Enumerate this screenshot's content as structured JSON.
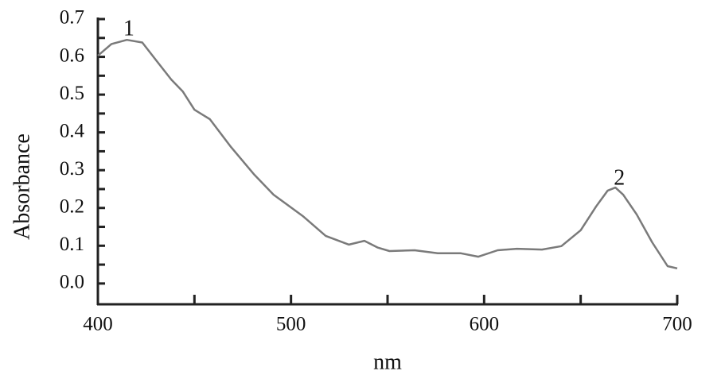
{
  "chart_data": {
    "type": "line",
    "xlabel": "nm",
    "ylabel": "Absorbance",
    "x": [
      400,
      407,
      415,
      423,
      430,
      438,
      444,
      450,
      458,
      469,
      481,
      491,
      506,
      518,
      530,
      538,
      545,
      551,
      564,
      576,
      588,
      597,
      607,
      617,
      630,
      640,
      650,
      658,
      664,
      668,
      672,
      679,
      687,
      695,
      700
    ],
    "values": [
      0.603,
      0.634,
      0.645,
      0.638,
      0.592,
      0.54,
      0.508,
      0.46,
      0.435,
      0.361,
      0.288,
      0.235,
      0.179,
      0.126,
      0.103,
      0.113,
      0.095,
      0.086,
      0.088,
      0.08,
      0.08,
      0.071,
      0.088,
      0.092,
      0.09,
      0.099,
      0.141,
      0.204,
      0.246,
      0.254,
      0.235,
      0.183,
      0.109,
      0.046,
      0.04
    ],
    "color": "#7a7a7a",
    "xlim": [
      400,
      700
    ],
    "xticks": [
      400,
      500,
      600,
      700
    ],
    "xminorticks": [
      450,
      550,
      650
    ],
    "ylim": [
      -0.055,
      0.7
    ],
    "yticks": [
      {
        "value": 0,
        "label": "0.0"
      },
      0.1,
      0.2,
      0.3,
      0.4,
      0.5,
      0.6,
      0.7
    ],
    "yminorticks": [
      0.05,
      0.15,
      0.25,
      0.35,
      0.45,
      0.55,
      0.65
    ],
    "annotations": [
      {
        "text": "1",
        "x": 416,
        "y": 0.67
      },
      {
        "text": "2",
        "x": 670,
        "y": 0.275
      }
    ]
  }
}
